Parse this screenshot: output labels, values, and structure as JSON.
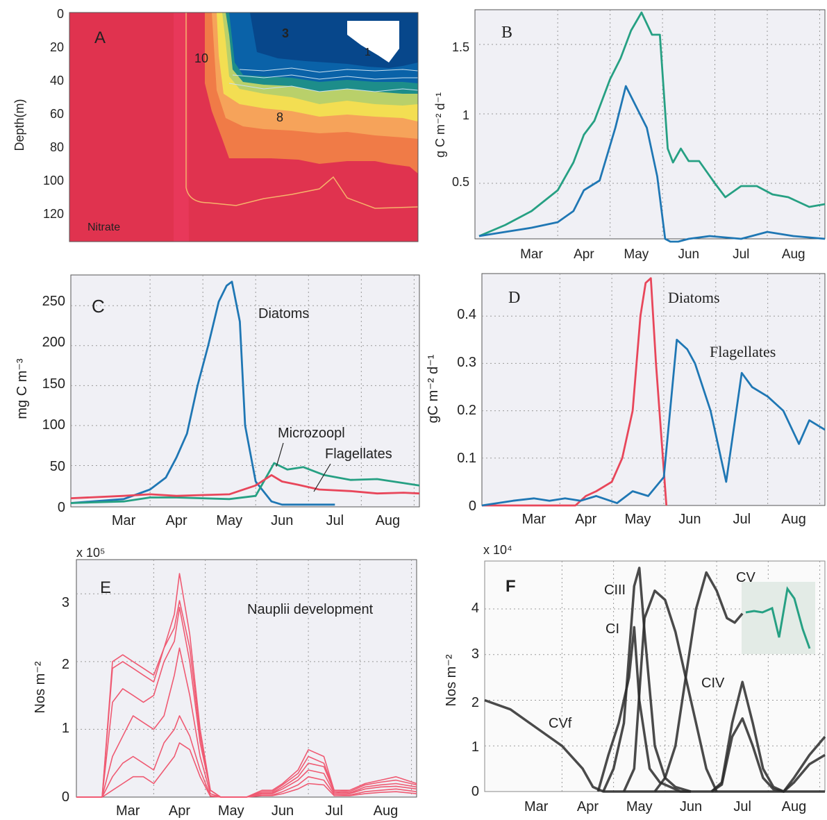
{
  "panels": {
    "A": {
      "letter": "A",
      "label": "Nitrate",
      "ylabel": "Depth(m)",
      "yticks": [
        "0",
        "20",
        "40",
        "60",
        "80",
        "100",
        "120"
      ],
      "contour_labels": [
        "10",
        "3",
        "8",
        "1"
      ]
    },
    "B": {
      "letter": "B",
      "ylabel": "g C m⁻² d⁻¹",
      "yticks": [
        "0.5",
        "1",
        "1.5"
      ],
      "xticks": [
        "Mar",
        "Apr",
        "May",
        "Jun",
        "Jul",
        "Aug"
      ]
    },
    "C": {
      "letter": "C",
      "ylabel": "mg C m⁻³",
      "yticks": [
        "0",
        "50",
        "100",
        "150",
        "200",
        "250"
      ],
      "xticks": [
        "Mar",
        "Apr",
        "May",
        "Jun",
        "Jul",
        "Aug"
      ],
      "labels": [
        "Diatoms",
        "Microzoopl",
        "Flagellates"
      ]
    },
    "D": {
      "letter": "D",
      "ylabel": "gC m⁻² d⁻¹",
      "yticks": [
        "0",
        "0.1",
        "0.2",
        "0.3",
        "0.4"
      ],
      "xticks": [
        "Mar",
        "Apr",
        "May",
        "Jun",
        "Jul",
        "Aug"
      ],
      "labels": [
        "Diatoms",
        "Flagellates"
      ]
    },
    "E": {
      "letter": "E",
      "title": "Nauplii development",
      "ylabel": "Nos m⁻²",
      "multiplier": "x 10⁵",
      "yticks": [
        "0",
        "1",
        "2",
        "3"
      ],
      "xticks": [
        "Mar",
        "Apr",
        "May",
        "Jun",
        "Jul",
        "Aug"
      ]
    },
    "F": {
      "letter": "F",
      "ylabel": "Nos m⁻²",
      "multiplier": "x 10⁴",
      "yticks": [
        "0",
        "1",
        "2",
        "3",
        "4"
      ],
      "xticks": [
        "Mar",
        "Apr",
        "May",
        "Jun",
        "Jul",
        "Aug"
      ],
      "labels": [
        "CIII",
        "CI",
        "CIV",
        "CV",
        "CVf"
      ]
    }
  },
  "colors": {
    "blue": "#1f77b4",
    "teal": "#26a083",
    "red": "#e8465a",
    "pink": "#ef5a72",
    "nitrate_red": "#e0334f",
    "dark": "#2a2a2a"
  },
  "chart_data": [
    {
      "panel": "B",
      "type": "line",
      "x_unit": "month",
      "ylim": [
        0.1,
        1.75
      ],
      "grid": true,
      "series": [
        {
          "color": "teal",
          "x": [
            2.0,
            2.5,
            3.0,
            3.5,
            3.8,
            4.0,
            4.2,
            4.5,
            4.7,
            4.9,
            5.1,
            5.3,
            5.45,
            5.6,
            5.7,
            5.85,
            6.0,
            6.2,
            6.5,
            6.7,
            7.0,
            7.3,
            7.6,
            7.9,
            8.3,
            8.6
          ],
          "y": [
            0.12,
            0.2,
            0.3,
            0.45,
            0.65,
            0.85,
            0.95,
            1.25,
            1.4,
            1.6,
            1.73,
            1.57,
            1.57,
            0.75,
            0.65,
            0.75,
            0.66,
            0.66,
            0.5,
            0.4,
            0.48,
            0.48,
            0.42,
            0.4,
            0.33,
            0.35
          ]
        },
        {
          "color": "blue",
          "x": [
            2.0,
            2.5,
            3.0,
            3.5,
            3.8,
            4.0,
            4.3,
            4.6,
            4.8,
            5.0,
            5.2,
            5.4,
            5.55,
            5.65,
            5.8,
            6.0,
            6.4,
            7.0,
            7.5,
            8.0,
            8.6
          ],
          "y": [
            0.12,
            0.15,
            0.18,
            0.22,
            0.3,
            0.45,
            0.52,
            0.9,
            1.2,
            1.05,
            0.9,
            0.55,
            0.1,
            0.08,
            0.08,
            0.1,
            0.12,
            0.1,
            0.15,
            0.12,
            0.1
          ]
        }
      ]
    },
    {
      "panel": "C",
      "type": "line",
      "x_unit": "month",
      "ylim": [
        0,
        280
      ],
      "grid": true,
      "series": [
        {
          "name": "Diatoms",
          "color": "blue",
          "x": [
            2.0,
            3.0,
            3.5,
            3.8,
            4.0,
            4.2,
            4.4,
            4.6,
            4.8,
            4.95,
            5.05,
            5.2,
            5.3,
            5.5,
            5.8,
            6.0,
            6.5,
            7.0
          ],
          "y": [
            3,
            8,
            20,
            35,
            60,
            90,
            150,
            200,
            255,
            275,
            280,
            230,
            100,
            30,
            5,
            1,
            1,
            1
          ]
        },
        {
          "name": "Microzoopl",
          "color": "teal",
          "x": [
            2.0,
            3.0,
            3.5,
            4.0,
            5.0,
            5.5,
            5.85,
            6.1,
            6.4,
            6.8,
            7.3,
            7.8,
            8.3,
            8.6
          ],
          "y": [
            3,
            5,
            10,
            10,
            8,
            12,
            53,
            45,
            48,
            38,
            32,
            33,
            28,
            25
          ]
        },
        {
          "name": "Flagellates",
          "color": "red",
          "x": [
            2.0,
            3.0,
            3.5,
            4.0,
            4.5,
            5.0,
            5.5,
            5.8,
            6.0,
            6.3,
            6.7,
            7.3,
            7.8,
            8.3,
            8.6
          ],
          "y": [
            9,
            12,
            14,
            12,
            13,
            14,
            25,
            38,
            30,
            26,
            20,
            18,
            15,
            16,
            15
          ]
        }
      ]
    },
    {
      "panel": "D",
      "type": "line",
      "x_unit": "month",
      "ylim": [
        0,
        0.48
      ],
      "grid": true,
      "series": [
        {
          "name": "Diatoms",
          "color": "red",
          "x": [
            2.0,
            3.8,
            4.0,
            4.2,
            4.5,
            4.7,
            4.9,
            5.05,
            5.15,
            5.25,
            5.35,
            5.55
          ],
          "y": [
            0,
            0,
            0.02,
            0.03,
            0.05,
            0.1,
            0.2,
            0.4,
            0.47,
            0.48,
            0.3,
            0
          ]
        },
        {
          "name": "Flagellates",
          "color": "blue",
          "x": [
            2.0,
            2.6,
            3.0,
            3.3,
            3.6,
            3.9,
            4.2,
            4.6,
            4.9,
            5.2,
            5.5,
            5.75,
            5.95,
            6.1,
            6.4,
            6.7,
            7.0,
            7.2,
            7.5,
            7.8,
            8.1,
            8.3,
            8.6
          ],
          "y": [
            0,
            0.01,
            0.015,
            0.01,
            0.015,
            0.01,
            0.02,
            0.005,
            0.03,
            0.02,
            0.06,
            0.35,
            0.33,
            0.3,
            0.2,
            0.05,
            0.28,
            0.25,
            0.23,
            0.2,
            0.13,
            0.18,
            0.16
          ]
        }
      ]
    },
    {
      "panel": "E",
      "type": "line",
      "x_unit": "month",
      "ylim": [
        0,
        3.4
      ],
      "grid": true,
      "series": [
        {
          "x": [
            2.0,
            2.3,
            2.5,
            2.7,
            2.9,
            3.1,
            3.3,
            3.5,
            3.7,
            3.9,
            4.0,
            4.2,
            4.4,
            4.6,
            4.8,
            5.0,
            5.3,
            5.6,
            5.8,
            6.0,
            6.3,
            6.5,
            6.8,
            7.0,
            7.3,
            7.6,
            7.9,
            8.2,
            8.6
          ],
          "y": [
            0,
            0,
            0,
            2.0,
            2.1,
            2.0,
            1.9,
            1.8,
            2.2,
            2.7,
            3.3,
            2.4,
            1.0,
            0.1,
            0,
            0,
            0,
            0.1,
            0.1,
            0.2,
            0.4,
            0.7,
            0.6,
            0.1,
            0.1,
            0.2,
            0.25,
            0.3,
            0.2
          ]
        },
        {
          "x": [
            2.0,
            2.3,
            2.5,
            2.7,
            2.9,
            3.1,
            3.3,
            3.5,
            3.7,
            3.9,
            4.0,
            4.2,
            4.4,
            4.6,
            4.8,
            5.0,
            5.3,
            5.6,
            5.8,
            6.0,
            6.3,
            6.5,
            6.8,
            7.0,
            7.3,
            7.6,
            7.9,
            8.2,
            8.6
          ],
          "y": [
            0,
            0,
            0,
            1.9,
            2.0,
            1.9,
            1.8,
            1.7,
            2.2,
            2.5,
            2.9,
            2.2,
            0.9,
            0.1,
            0,
            0,
            0,
            0.08,
            0.08,
            0.18,
            0.35,
            0.6,
            0.5,
            0.1,
            0.08,
            0.18,
            0.22,
            0.25,
            0.18
          ]
        },
        {
          "x": [
            2.0,
            2.3,
            2.5,
            2.7,
            2.9,
            3.1,
            3.3,
            3.5,
            3.7,
            3.9,
            4.0,
            4.2,
            4.4,
            4.6,
            4.8,
            5.0,
            5.3,
            5.6,
            5.8,
            6.0,
            6.3,
            6.5,
            6.8,
            7.0,
            7.3,
            7.6,
            7.9,
            8.2,
            8.6
          ],
          "y": [
            0,
            0,
            0,
            1.4,
            1.6,
            1.5,
            1.4,
            1.5,
            2.0,
            2.3,
            2.8,
            2.0,
            0.8,
            0.1,
            0,
            0,
            0,
            0.06,
            0.06,
            0.15,
            0.3,
            0.5,
            0.45,
            0.08,
            0.06,
            0.15,
            0.18,
            0.2,
            0.15
          ]
        },
        {
          "x": [
            2.0,
            2.3,
            2.5,
            2.7,
            2.9,
            3.1,
            3.3,
            3.5,
            3.7,
            3.9,
            4.0,
            4.2,
            4.4,
            4.6,
            4.8,
            5.0,
            5.3,
            5.6,
            5.8,
            6.0,
            6.3,
            6.5,
            6.8,
            7.0,
            7.3,
            7.6,
            7.9,
            8.2,
            8.6
          ],
          "y": [
            0,
            0,
            0,
            0.6,
            0.9,
            1.2,
            1.1,
            1.0,
            1.2,
            1.8,
            2.2,
            1.5,
            0.6,
            0.05,
            0,
            0,
            0,
            0.05,
            0.05,
            0.12,
            0.25,
            0.4,
            0.35,
            0.06,
            0.05,
            0.12,
            0.15,
            0.16,
            0.12
          ]
        },
        {
          "x": [
            2.0,
            2.3,
            2.5,
            2.7,
            2.9,
            3.1,
            3.3,
            3.5,
            3.7,
            3.9,
            4.0,
            4.2,
            4.4,
            4.6,
            4.8,
            5.0,
            5.3,
            5.6,
            5.8,
            6.0,
            6.3,
            6.5,
            6.8,
            7.0,
            7.3,
            7.6,
            7.9,
            8.2,
            8.6
          ],
          "y": [
            0,
            0,
            0,
            0.3,
            0.5,
            0.6,
            0.5,
            0.4,
            0.8,
            1.0,
            1.2,
            0.9,
            0.4,
            0.02,
            0,
            0,
            0,
            0.03,
            0.03,
            0.08,
            0.18,
            0.3,
            0.25,
            0.04,
            0.03,
            0.08,
            0.1,
            0.12,
            0.08
          ]
        },
        {
          "x": [
            2.0,
            2.3,
            2.5,
            2.7,
            2.9,
            3.1,
            3.3,
            3.5,
            3.7,
            3.9,
            4.0,
            4.2,
            4.4,
            4.6,
            4.8,
            5.0,
            5.3,
            5.6,
            5.8,
            6.0,
            6.3,
            6.5,
            6.8,
            7.0,
            7.3,
            7.6,
            7.9,
            8.2,
            8.6
          ],
          "y": [
            0,
            0,
            0,
            0.1,
            0.2,
            0.3,
            0.3,
            0.2,
            0.4,
            0.6,
            0.8,
            0.7,
            0.3,
            0.01,
            0,
            0,
            0,
            0.02,
            0.02,
            0.05,
            0.12,
            0.2,
            0.18,
            0.02,
            0.02,
            0.05,
            0.07,
            0.08,
            0.05
          ]
        }
      ]
    },
    {
      "panel": "F",
      "type": "line",
      "x_unit": "month",
      "ylim": [
        0,
        5.0
      ],
      "grid": true,
      "series": [
        {
          "name": "CVf",
          "x": [
            2.0,
            2.5,
            3.0,
            3.5,
            3.9,
            4.1,
            4.3,
            4.5,
            5.0,
            6.0,
            7.0,
            8.6
          ],
          "y": [
            2.0,
            1.8,
            1.4,
            1.0,
            0.5,
            0.1,
            0,
            0,
            0,
            0,
            0,
            0
          ]
        },
        {
          "name": "CI",
          "x": [
            4.2,
            4.4,
            4.6,
            4.8,
            4.9,
            5.0,
            5.2,
            5.4,
            5.6,
            5.8,
            6.0
          ],
          "y": [
            0,
            0.8,
            1.5,
            2.5,
            3.6,
            2.0,
            0.5,
            0.2,
            0.1,
            0,
            0
          ]
        },
        {
          "name": "CIII",
          "x": [
            4.3,
            4.5,
            4.7,
            4.9,
            5.0,
            5.1,
            5.3,
            5.5,
            5.7,
            6.0
          ],
          "y": [
            0,
            0.5,
            1.5,
            4.5,
            4.9,
            3.5,
            1.0,
            0.3,
            0.1,
            0
          ]
        },
        {
          "name": "CIV",
          "x": [
            4.7,
            4.9,
            5.1,
            5.3,
            5.5,
            5.7,
            5.9,
            6.1,
            6.3,
            6.5
          ],
          "y": [
            0,
            0.5,
            3.8,
            4.4,
            4.2,
            3.5,
            2.5,
            1.5,
            0.5,
            0
          ]
        },
        {
          "name": "CV",
          "x": [
            5.3,
            5.5,
            5.7,
            5.9,
            6.1,
            6.3,
            6.5,
            6.7,
            6.85,
            7.0
          ],
          "y": [
            0,
            0.3,
            1.0,
            2.5,
            4.0,
            4.8,
            4.4,
            3.8,
            3.7,
            3.9
          ]
        },
        {
          "x": [
            6.4,
            6.6,
            6.8,
            7.0,
            7.2,
            7.4,
            7.6,
            7.8,
            8.0,
            8.3,
            8.6
          ],
          "y": [
            0,
            0.2,
            1.5,
            2.4,
            1.5,
            0.5,
            0.1,
            0,
            0.3,
            0.8,
            1.2
          ]
        },
        {
          "x": [
            6.4,
            6.6,
            6.8,
            7.0,
            7.2,
            7.4,
            7.6,
            7.8,
            8.0,
            8.3,
            8.6
          ],
          "y": [
            0,
            0.15,
            1.2,
            1.6,
            1.0,
            0.3,
            0.05,
            0,
            0.2,
            0.6,
            0.8
          ]
        }
      ]
    }
  ]
}
